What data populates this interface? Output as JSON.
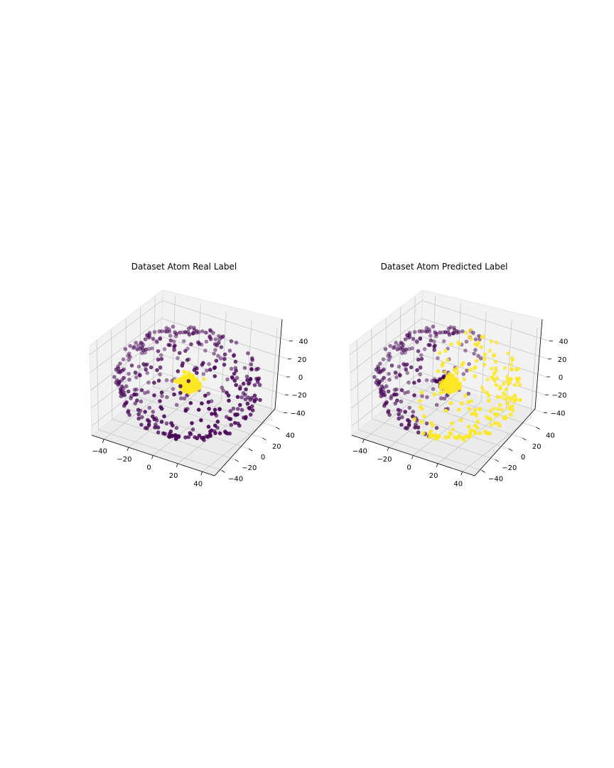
{
  "chart_data": [
    {
      "type": "scatter3d",
      "title": "Dataset Atom Real Label",
      "xlim": [
        -50,
        50
      ],
      "ylim": [
        -50,
        50
      ],
      "zlim": [
        -50,
        50
      ],
      "xticks": [
        -40,
        -20,
        0,
        20,
        40
      ],
      "yticks": [
        -40,
        -20,
        0,
        20,
        40
      ],
      "zticks": [
        -40,
        -20,
        0,
        20,
        40
      ],
      "grid": true,
      "series": [
        {
          "cluster": "outer shell",
          "approx_points": 400,
          "radius": 50,
          "color": "#440154"
        },
        {
          "cluster": "inner core",
          "approx_points": 400,
          "radius": 10,
          "color": "#fde725"
        }
      ]
    },
    {
      "type": "scatter3d",
      "title": "Dataset Atom Predicted Label",
      "xlim": [
        -50,
        50
      ],
      "ylim": [
        -50,
        50
      ],
      "zlim": [
        -50,
        50
      ],
      "xticks": [
        -40,
        -20,
        0,
        20,
        40
      ],
      "yticks": [
        -40,
        -20,
        0,
        20,
        40
      ],
      "zticks": [
        -40,
        -20,
        0,
        20,
        40
      ],
      "grid": true,
      "series": [
        {
          "cluster": "predicted purple: outer shell, x < 0 half",
          "approx_points": 200,
          "color": "#440154"
        },
        {
          "cluster": "predicted yellow: outer shell, x > 0 half",
          "approx_points": 200,
          "color": "#fde725"
        },
        {
          "cluster": "predicted yellow: inner core (x > -3)",
          "approx_points": 300,
          "color": "#fde725"
        },
        {
          "cluster": "predicted purple: inner core (x < -3)",
          "approx_points": 100,
          "color": "#440154"
        }
      ]
    }
  ]
}
